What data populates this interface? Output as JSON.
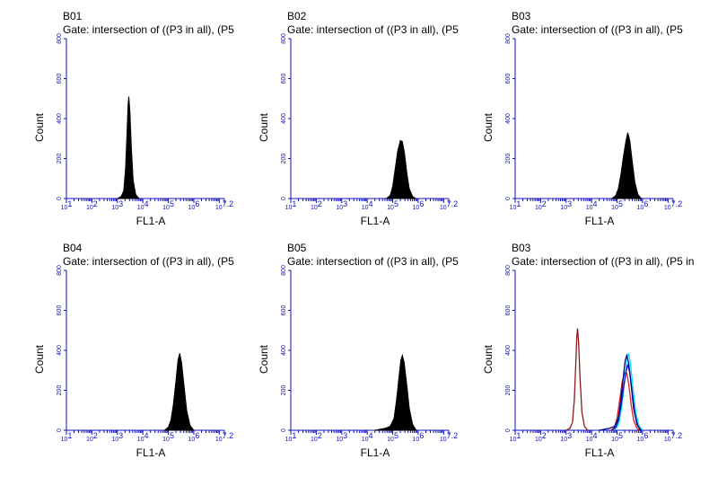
{
  "chart_data": [
    {
      "type": "histogram",
      "title": "B01",
      "gate": "Gate: intersection of ((P3 in all), (P5",
      "xlabel": "FL1-A",
      "ylabel": "Count",
      "x_scale": "log10",
      "xlim": [
        1,
        7.2
      ],
      "ylim": [
        0,
        800
      ],
      "yticks": [
        "0",
        "200",
        "400",
        "600",
        "800"
      ],
      "xticks": [
        "10^1",
        "10^2",
        "10^3",
        "10^4",
        "10^5",
        "10^6",
        "10^7.2"
      ],
      "series": [
        {
          "style": "filled",
          "color": "#000000",
          "points": [
            [
              3.0,
              0
            ],
            [
              3.15,
              10
            ],
            [
              3.25,
              40
            ],
            [
              3.32,
              150
            ],
            [
              3.38,
              340
            ],
            [
              3.42,
              470
            ],
            [
              3.45,
              510
            ],
            [
              3.49,
              440
            ],
            [
              3.55,
              250
            ],
            [
              3.62,
              90
            ],
            [
              3.72,
              20
            ],
            [
              3.85,
              0
            ]
          ]
        }
      ]
    },
    {
      "type": "histogram",
      "title": "B02",
      "gate": "Gate: intersection of ((P3 in all), (P5",
      "xlabel": "FL1-A",
      "ylabel": "Count",
      "x_scale": "log10",
      "xlim": [
        1,
        7.2
      ],
      "ylim": [
        0,
        800
      ],
      "yticks": [
        "0",
        "200",
        "400",
        "600",
        "800"
      ],
      "xticks": [
        "10^1",
        "10^2",
        "10^3",
        "10^4",
        "10^5",
        "10^6",
        "10^7.2"
      ],
      "series": [
        {
          "style": "filled",
          "color": "#000000",
          "points": [
            [
              4.75,
              0
            ],
            [
              4.9,
              15
            ],
            [
              5.0,
              60
            ],
            [
              5.1,
              150
            ],
            [
              5.2,
              240
            ],
            [
              5.3,
              290
            ],
            [
              5.38,
              285
            ],
            [
              5.46,
              230
            ],
            [
              5.55,
              130
            ],
            [
              5.65,
              50
            ],
            [
              5.78,
              10
            ],
            [
              5.9,
              0
            ]
          ]
        }
      ]
    },
    {
      "type": "histogram",
      "title": "B03",
      "gate": "Gate: intersection of ((P3 in all), (P5",
      "xlabel": "FL1-A",
      "ylabel": "Count",
      "x_scale": "log10",
      "xlim": [
        1,
        7.2
      ],
      "ylim": [
        0,
        800
      ],
      "yticks": [
        "0",
        "200",
        "400",
        "600",
        "800"
      ],
      "xticks": [
        "10^1",
        "10^2",
        "10^3",
        "10^4",
        "10^5",
        "10^6",
        "10^7.2"
      ],
      "series": [
        {
          "style": "filled",
          "color": "#000000",
          "points": [
            [
              4.8,
              0
            ],
            [
              4.95,
              15
            ],
            [
              5.05,
              50
            ],
            [
              5.15,
              120
            ],
            [
              5.25,
              210
            ],
            [
              5.35,
              290
            ],
            [
              5.42,
              330
            ],
            [
              5.5,
              290
            ],
            [
              5.6,
              180
            ],
            [
              5.7,
              80
            ],
            [
              5.82,
              20
            ],
            [
              5.95,
              0
            ]
          ]
        }
      ]
    },
    {
      "type": "histogram",
      "title": "B04",
      "gate": "Gate: intersection of ((P3 in all), (P5",
      "xlabel": "FL1-A",
      "ylabel": "Count",
      "x_scale": "log10",
      "xlim": [
        1,
        7.2
      ],
      "ylim": [
        0,
        800
      ],
      "yticks": [
        "0",
        "200",
        "400",
        "600",
        "800"
      ],
      "xticks": [
        "10^1",
        "10^2",
        "10^3",
        "10^4",
        "10^5",
        "10^6",
        "10^7.2"
      ],
      "series": [
        {
          "style": "filled",
          "color": "#000000",
          "points": [
            [
              4.85,
              0
            ],
            [
              5.0,
              15
            ],
            [
              5.1,
              50
            ],
            [
              5.2,
              130
            ],
            [
              5.3,
              250
            ],
            [
              5.38,
              350
            ],
            [
              5.45,
              385
            ],
            [
              5.52,
              340
            ],
            [
              5.62,
              220
            ],
            [
              5.72,
              100
            ],
            [
              5.85,
              25
            ],
            [
              6.0,
              0
            ]
          ]
        }
      ]
    },
    {
      "type": "histogram",
      "title": "B05",
      "gate": "Gate: intersection of ((P3 in all), (P5",
      "xlabel": "FL1-A",
      "ylabel": "Count",
      "x_scale": "log10",
      "xlim": [
        1,
        7.2
      ],
      "ylim": [
        0,
        800
      ],
      "yticks": [
        "0",
        "200",
        "400",
        "600",
        "800"
      ],
      "xticks": [
        "10^1",
        "10^2",
        "10^3",
        "10^4",
        "10^5",
        "10^6",
        "10^7.2"
      ],
      "series": [
        {
          "style": "filled",
          "color": "#000000",
          "points": [
            [
              4.3,
              0
            ],
            [
              4.5,
              5
            ],
            [
              4.7,
              10
            ],
            [
              4.9,
              20
            ],
            [
              5.05,
              60
            ],
            [
              5.15,
              150
            ],
            [
              5.25,
              270
            ],
            [
              5.32,
              350
            ],
            [
              5.38,
              375
            ],
            [
              5.45,
              340
            ],
            [
              5.55,
              230
            ],
            [
              5.65,
              110
            ],
            [
              5.78,
              30
            ],
            [
              5.92,
              0
            ]
          ]
        }
      ]
    },
    {
      "type": "line",
      "title": "B03",
      "gate": "Gate: intersection of ((P3 in all), (P5 in",
      "xlabel": "FL1-A",
      "ylabel": "Count",
      "x_scale": "log10",
      "xlim": [
        1,
        7.2
      ],
      "ylim": [
        0,
        800
      ],
      "yticks": [
        "0",
        "200",
        "400",
        "600",
        "800"
      ],
      "xticks": [
        "10^1",
        "10^2",
        "10^3",
        "10^4",
        "10^5",
        "10^6",
        "10^7.2"
      ],
      "series": [
        {
          "style": "line",
          "color": "#8b1a1a",
          "points": [
            [
              3.0,
              0
            ],
            [
              3.15,
              10
            ],
            [
              3.25,
              40
            ],
            [
              3.32,
              150
            ],
            [
              3.38,
              340
            ],
            [
              3.42,
              470
            ],
            [
              3.45,
              510
            ],
            [
              3.49,
              440
            ],
            [
              3.55,
              250
            ],
            [
              3.62,
              90
            ],
            [
              3.72,
              20
            ],
            [
              3.85,
              0
            ]
          ]
        },
        {
          "style": "line",
          "color": "#e02020",
          "points": [
            [
              4.75,
              0
            ],
            [
              4.9,
              15
            ],
            [
              5.0,
              60
            ],
            [
              5.1,
              150
            ],
            [
              5.2,
              240
            ],
            [
              5.3,
              290
            ],
            [
              5.38,
              285
            ],
            [
              5.46,
              230
            ],
            [
              5.55,
              130
            ],
            [
              5.65,
              50
            ],
            [
              5.78,
              10
            ],
            [
              5.9,
              0
            ]
          ]
        },
        {
          "style": "line",
          "color": "#00e0ff",
          "points": [
            [
              4.85,
              0
            ],
            [
              5.0,
              15
            ],
            [
              5.1,
              50
            ],
            [
              5.2,
              130
            ],
            [
              5.3,
              250
            ],
            [
              5.38,
              350
            ],
            [
              5.45,
              385
            ],
            [
              5.52,
              340
            ],
            [
              5.62,
              220
            ],
            [
              5.72,
              100
            ],
            [
              5.85,
              25
            ],
            [
              6.0,
              0
            ]
          ]
        },
        {
          "style": "line",
          "color": "#1010d0",
          "points": [
            [
              4.8,
              0
            ],
            [
              4.95,
              15
            ],
            [
              5.05,
              50
            ],
            [
              5.15,
              120
            ],
            [
              5.25,
              210
            ],
            [
              5.35,
              290
            ],
            [
              5.42,
              330
            ],
            [
              5.5,
              290
            ],
            [
              5.6,
              180
            ],
            [
              5.7,
              80
            ],
            [
              5.82,
              20
            ],
            [
              5.95,
              0
            ]
          ]
        },
        {
          "style": "line",
          "color": "#000080",
          "points": [
            [
              4.3,
              0
            ],
            [
              4.5,
              5
            ],
            [
              4.7,
              10
            ],
            [
              4.9,
              20
            ],
            [
              5.05,
              60
            ],
            [
              5.15,
              150
            ],
            [
              5.25,
              270
            ],
            [
              5.32,
              350
            ],
            [
              5.38,
              375
            ],
            [
              5.45,
              340
            ],
            [
              5.55,
              230
            ],
            [
              5.65,
              110
            ],
            [
              5.78,
              30
            ],
            [
              5.92,
              0
            ]
          ]
        }
      ]
    }
  ]
}
